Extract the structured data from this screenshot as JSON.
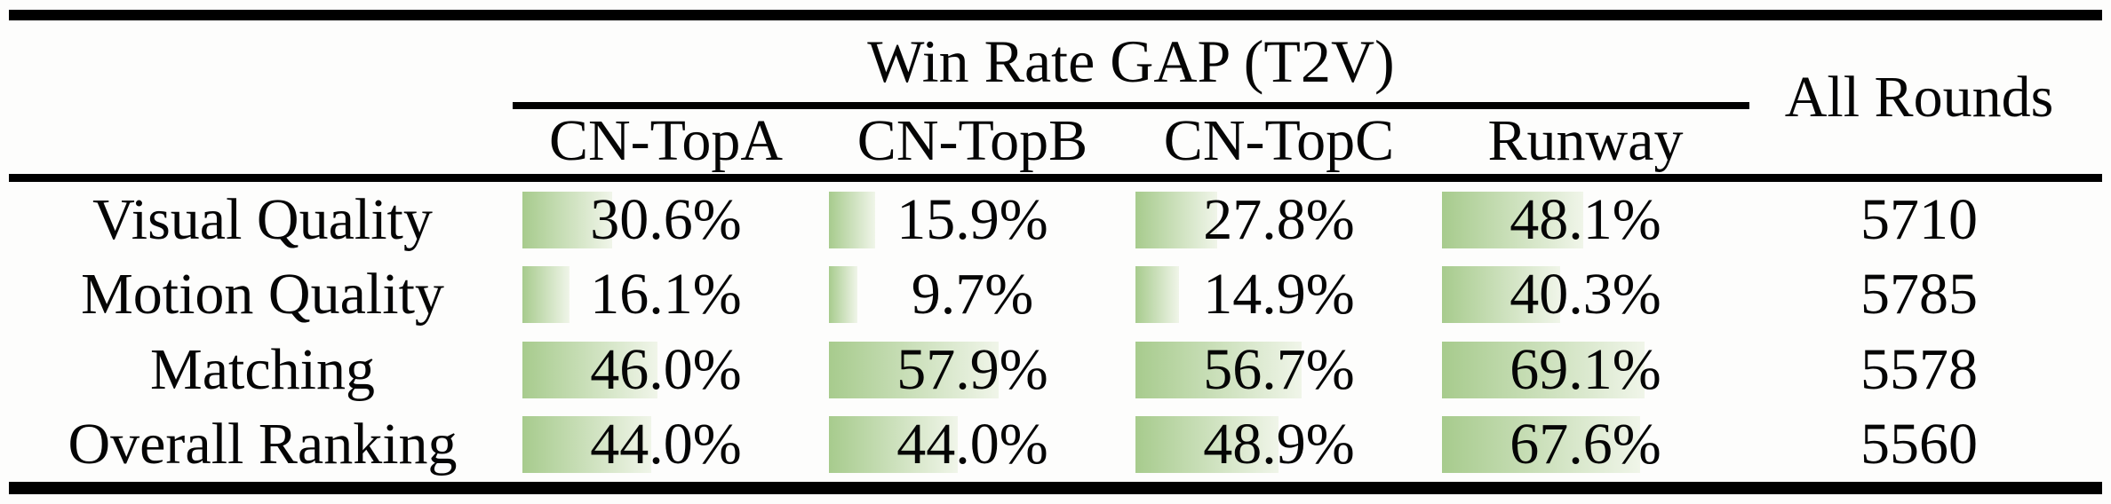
{
  "table": {
    "group_header": "Win Rate GAP (T2V)",
    "all_rounds_header": "All Rounds",
    "columns": [
      "CN-TopA",
      "CN-TopB",
      "CN-TopC",
      "Runway"
    ],
    "rows": [
      {
        "label": "Visual Quality",
        "cells": [
          {
            "value": 30.6,
            "display": "30.6%"
          },
          {
            "value": 15.9,
            "display": "15.9%"
          },
          {
            "value": 27.8,
            "display": "27.8%"
          },
          {
            "value": 48.1,
            "display": "48.1%"
          }
        ],
        "all_rounds": "5710"
      },
      {
        "label": "Motion Quality",
        "cells": [
          {
            "value": 16.1,
            "display": "16.1%"
          },
          {
            "value": 9.7,
            "display": "9.7%"
          },
          {
            "value": 14.9,
            "display": "14.9%"
          },
          {
            "value": 40.3,
            "display": "40.3%"
          }
        ],
        "all_rounds": "5785"
      },
      {
        "label": "Matching",
        "cells": [
          {
            "value": 46.0,
            "display": "46.0%"
          },
          {
            "value": 57.9,
            "display": "57.9%"
          },
          {
            "value": 56.7,
            "display": "56.7%"
          },
          {
            "value": 69.1,
            "display": "69.1%"
          }
        ],
        "all_rounds": "5578"
      },
      {
        "label": "Overall Ranking",
        "cells": [
          {
            "value": 44.0,
            "display": "44.0%"
          },
          {
            "value": 44.0,
            "display": "44.0%"
          },
          {
            "value": 48.9,
            "display": "48.9%"
          },
          {
            "value": 67.6,
            "display": "67.6%"
          }
        ],
        "all_rounds": "5560"
      }
    ]
  },
  "colors": {
    "bar_gradient_start": "#a7cb8d",
    "bar_gradient_end": "#f0f5e9",
    "rule": "#000000",
    "text": "#050505"
  },
  "chart_data": {
    "type": "bar",
    "orientation": "horizontal-databar",
    "categories": [
      "Visual Quality",
      "Motion Quality",
      "Matching",
      "Overall Ranking"
    ],
    "series": [
      {
        "name": "CN-TopA",
        "values": [
          30.6,
          16.1,
          46.0,
          44.0
        ]
      },
      {
        "name": "CN-TopB",
        "values": [
          15.9,
          9.7,
          57.9,
          44.0
        ]
      },
      {
        "name": "CN-TopC",
        "values": [
          27.8,
          14.9,
          56.7,
          48.9
        ]
      },
      {
        "name": "Runway",
        "values": [
          48.1,
          40.3,
          69.1,
          67.6
        ]
      }
    ],
    "extra_column": {
      "name": "All Rounds",
      "values": [
        5710,
        5785,
        5578,
        5560
      ]
    },
    "title": "Win Rate GAP (T2V)",
    "value_unit": "%",
    "value_range": [
      0,
      100
    ]
  }
}
